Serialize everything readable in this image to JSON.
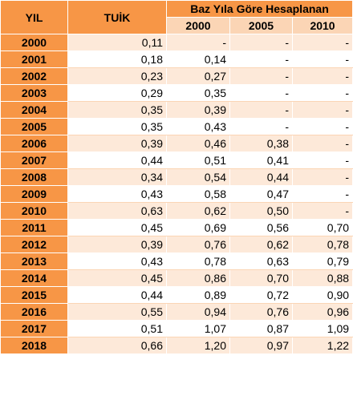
{
  "header": {
    "year": "YIL",
    "tuik": "TUİK",
    "group": "Baz Yıla  Göre Hesaplanan",
    "b2000": "2000",
    "b2005": "2005",
    "b2010": "2010"
  },
  "rows": [
    {
      "year": "2000",
      "tuik": "0,11",
      "b2000": "-",
      "b2005": "-",
      "b2010": "-"
    },
    {
      "year": "2001",
      "tuik": "0,18",
      "b2000": "0,14",
      "b2005": "-",
      "b2010": "-"
    },
    {
      "year": "2002",
      "tuik": "0,23",
      "b2000": "0,27",
      "b2005": "-",
      "b2010": "-"
    },
    {
      "year": "2003",
      "tuik": "0,29",
      "b2000": "0,35",
      "b2005": "-",
      "b2010": "-"
    },
    {
      "year": "2004",
      "tuik": "0,35",
      "b2000": "0,39",
      "b2005": "-",
      "b2010": "-"
    },
    {
      "year": "2005",
      "tuik": "0,35",
      "b2000": "0,43",
      "b2005": "-",
      "b2010": "-"
    },
    {
      "year": "2006",
      "tuik": "0,39",
      "b2000": "0,46",
      "b2005": "0,38",
      "b2010": "-"
    },
    {
      "year": "2007",
      "tuik": "0,44",
      "b2000": "0,51",
      "b2005": "0,41",
      "b2010": "-"
    },
    {
      "year": "2008",
      "tuik": "0,34",
      "b2000": "0,54",
      "b2005": "0,44",
      "b2010": "-"
    },
    {
      "year": "2009",
      "tuik": "0,43",
      "b2000": "0,58",
      "b2005": "0,47",
      "b2010": "-"
    },
    {
      "year": "2010",
      "tuik": "0,63",
      "b2000": "0,62",
      "b2005": "0,50",
      "b2010": "-"
    },
    {
      "year": "2011",
      "tuik": "0,45",
      "b2000": "0,69",
      "b2005": "0,56",
      "b2010": "0,70"
    },
    {
      "year": "2012",
      "tuik": "0,39",
      "b2000": "0,76",
      "b2005": "0,62",
      "b2010": "0,78"
    },
    {
      "year": "2013",
      "tuik": "0,43",
      "b2000": "0,78",
      "b2005": "0,63",
      "b2010": "0,79"
    },
    {
      "year": "2014",
      "tuik": "0,45",
      "b2000": "0,86",
      "b2005": "0,70",
      "b2010": "0,88"
    },
    {
      "year": "2015",
      "tuik": "0,44",
      "b2000": "0,89",
      "b2005": "0,72",
      "b2010": "0,90"
    },
    {
      "year": "2016",
      "tuik": "0,55",
      "b2000": "0,94",
      "b2005": "0,76",
      "b2010": "0,96"
    },
    {
      "year": "2017",
      "tuik": "0,51",
      "b2000": "1,07",
      "b2005": "0,87",
      "b2010": "1,09"
    },
    {
      "year": "2018",
      "tuik": "0,66",
      "b2000": "1,20",
      "b2005": "0,97",
      "b2010": "1,22"
    }
  ]
}
